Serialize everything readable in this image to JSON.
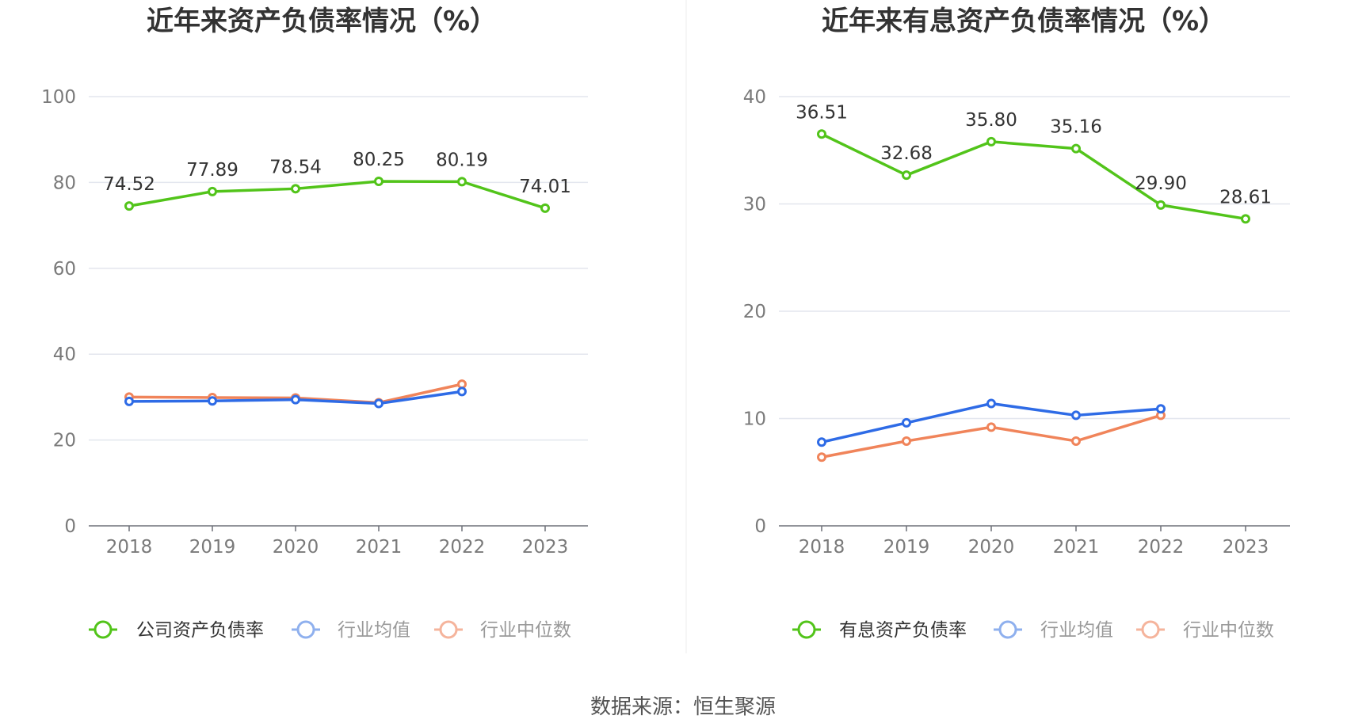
{
  "source_label": "数据来源：恒生聚源",
  "colors": {
    "company": "#52c41a",
    "avg": "#2e6be6",
    "median": "#f0845a",
    "avg_legend": "#8fb0ee",
    "median_legend": "#f5b49c"
  },
  "chart_data": [
    {
      "type": "line",
      "title": "近年来资产负债率情况（%）",
      "x": [
        "2018",
        "2019",
        "2020",
        "2021",
        "2022",
        "2023"
      ],
      "ylim": [
        0,
        100
      ],
      "yticks": [
        "0",
        "20",
        "40",
        "60",
        "80",
        "100"
      ],
      "grid": true,
      "legend_position": "bottom",
      "series": [
        {
          "name": "公司资产负债率",
          "values": [
            74.52,
            77.89,
            78.54,
            80.25,
            80.19,
            74.01
          ],
          "labels": [
            "74.52",
            "77.89",
            "78.54",
            "80.25",
            "80.19",
            "74.01"
          ]
        },
        {
          "name": "行业均值",
          "values": [
            29.0,
            29.1,
            29.4,
            28.5,
            31.3,
            null
          ]
        },
        {
          "name": "行业中位数",
          "values": [
            30.0,
            29.9,
            29.8,
            28.7,
            33.0,
            null
          ]
        }
      ]
    },
    {
      "type": "line",
      "title": "近年来有息资产负债率情况（%）",
      "x": [
        "2018",
        "2019",
        "2020",
        "2021",
        "2022",
        "2023"
      ],
      "ylim": [
        0,
        40
      ],
      "yticks": [
        "0",
        "10",
        "20",
        "30",
        "40"
      ],
      "grid": true,
      "legend_position": "bottom",
      "series": [
        {
          "name": "有息资产负债率",
          "values": [
            36.51,
            32.68,
            35.8,
            35.16,
            29.9,
            28.61
          ],
          "labels": [
            "36.51",
            "32.68",
            "35.80",
            "35.16",
            "29.90",
            "28.61"
          ]
        },
        {
          "name": "行业均值",
          "values": [
            7.8,
            9.6,
            11.4,
            10.3,
            10.9,
            null
          ]
        },
        {
          "name": "行业中位数",
          "values": [
            6.4,
            7.9,
            9.2,
            7.9,
            10.3,
            null
          ]
        }
      ]
    }
  ]
}
